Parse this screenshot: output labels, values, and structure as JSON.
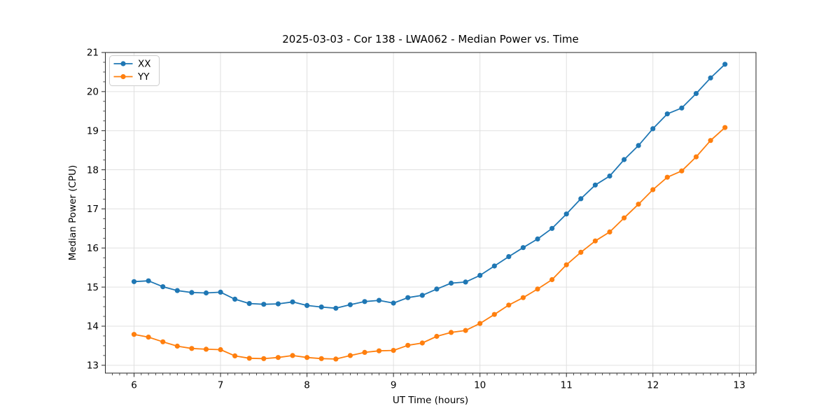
{
  "chart_data": {
    "type": "line",
    "title": "2025-03-03 - Cor 138 - LWA062 - Median Power vs. Time",
    "xlabel": "UT Time (hours)",
    "ylabel": "Median Power (CPU)",
    "xlim": [
      5.668,
      13.192
    ],
    "ylim": [
      12.8,
      21.0
    ],
    "xticks": [
      6,
      7,
      8,
      9,
      10,
      11,
      12,
      13
    ],
    "yticks": [
      13,
      14,
      15,
      16,
      17,
      18,
      19,
      20,
      21
    ],
    "x_minor_step": 0.083333,
    "y_minor_step": 0.25,
    "grid": true,
    "legend_position": "upper-left",
    "x": [
      6.0,
      6.1667,
      6.3333,
      6.5,
      6.6667,
      6.8333,
      7.0,
      7.1667,
      7.3333,
      7.5,
      7.6667,
      7.8333,
      8.0,
      8.1667,
      8.3333,
      8.5,
      8.6667,
      8.8333,
      9.0,
      9.1667,
      9.3333,
      9.5,
      9.6667,
      9.8333,
      10.0,
      10.1667,
      10.3333,
      10.5,
      10.6667,
      10.8333,
      11.0,
      11.1667,
      11.3333,
      11.5,
      11.6667,
      11.8333,
      12.0,
      12.1667,
      12.3333,
      12.5,
      12.6667,
      12.8333
    ],
    "series": [
      {
        "name": "XX",
        "color": "#1f77b4",
        "values": [
          15.14,
          15.16,
          15.01,
          14.91,
          14.86,
          14.85,
          14.87,
          14.69,
          14.58,
          14.56,
          14.57,
          14.62,
          14.53,
          14.49,
          14.46,
          14.55,
          14.63,
          14.66,
          14.59,
          14.73,
          14.79,
          14.95,
          15.1,
          15.13,
          15.3,
          15.54,
          15.78,
          16.01,
          16.23,
          16.5,
          16.87,
          17.26,
          17.61,
          17.84,
          18.26,
          18.62,
          19.05,
          19.43,
          19.58,
          19.95,
          20.35,
          20.7
        ]
      },
      {
        "name": "YY",
        "color": "#ff7f0e",
        "values": [
          13.79,
          13.72,
          13.6,
          13.49,
          13.43,
          13.41,
          13.4,
          13.24,
          13.18,
          13.17,
          13.2,
          13.25,
          13.2,
          13.17,
          13.16,
          13.25,
          13.33,
          13.37,
          13.38,
          13.51,
          13.57,
          13.74,
          13.84,
          13.89,
          14.07,
          14.3,
          14.54,
          14.73,
          14.95,
          15.19,
          15.57,
          15.89,
          16.18,
          16.41,
          16.77,
          17.12,
          17.49,
          17.81,
          17.97,
          18.33,
          18.75,
          19.08
        ]
      }
    ],
    "style": {
      "grid_color": "#e0e0e0",
      "axis_color": "#262626",
      "tick_label_color": "#000000",
      "legend_border_color": "#cccccc",
      "background": "#ffffff"
    }
  }
}
